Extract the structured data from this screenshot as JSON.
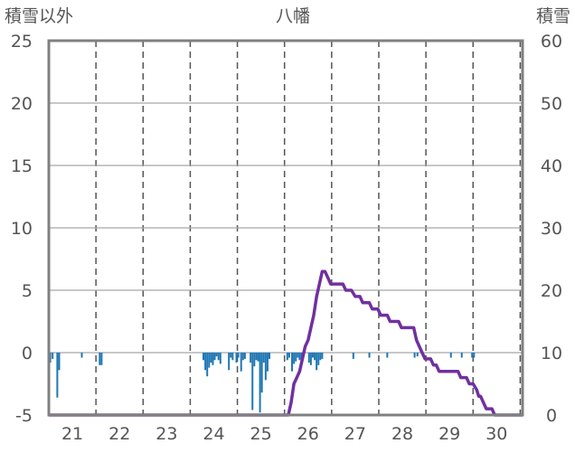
{
  "chart_data": {
    "type": "bar+line",
    "title": "八幡",
    "left_axis_label": "積雪以外",
    "right_axis_label": "積雪",
    "y_left": {
      "min": -5,
      "max": 25,
      "ticks": [
        25,
        20,
        15,
        10,
        5,
        0,
        -5
      ]
    },
    "y_right": {
      "min": 0,
      "max": 60,
      "ticks": [
        60,
        50,
        40,
        30,
        20,
        10,
        0
      ]
    },
    "x": {
      "start_day": 20.5,
      "end_day": 30.55,
      "tick_days": [
        21,
        22,
        23,
        24,
        25,
        26,
        27,
        28,
        29,
        30
      ]
    },
    "grid": {
      "vertical": "dashed",
      "horizontal": "solid"
    },
    "bar_color": "#1f77b4",
    "line_color": "#7030a0",
    "series": [
      {
        "type": "bar",
        "axis": "left",
        "points": [
          [
            20.53,
            -0.8
          ],
          [
            20.58,
            -0.5
          ],
          [
            20.68,
            -3.6
          ],
          [
            20.72,
            -1.4
          ],
          [
            21.2,
            -0.4
          ],
          [
            21.58,
            -1.0
          ],
          [
            21.62,
            -1.0
          ],
          [
            23.78,
            -0.6
          ],
          [
            23.82,
            -1.4
          ],
          [
            23.86,
            -1.9
          ],
          [
            23.9,
            -1.2
          ],
          [
            23.94,
            -0.8
          ],
          [
            23.98,
            -1.0
          ],
          [
            24.02,
            -0.6
          ],
          [
            24.06,
            -0.3
          ],
          [
            24.1,
            -0.6
          ],
          [
            24.14,
            -0.9
          ],
          [
            24.32,
            -1.4
          ],
          [
            24.36,
            -0.4
          ],
          [
            24.4,
            -0.6
          ],
          [
            24.48,
            -0.8
          ],
          [
            24.52,
            -0.4
          ],
          [
            24.58,
            -1.5
          ],
          [
            24.62,
            -0.6
          ],
          [
            24.66,
            -0.5
          ],
          [
            24.78,
            -0.8
          ],
          [
            24.82,
            -4.6
          ],
          [
            24.86,
            -1.1
          ],
          [
            24.9,
            -0.6
          ],
          [
            24.94,
            -0.7
          ],
          [
            24.98,
            -4.8
          ],
          [
            25.02,
            -3.2
          ],
          [
            25.06,
            -0.8
          ],
          [
            25.1,
            -2.2
          ],
          [
            25.14,
            -1.5
          ],
          [
            25.18,
            -0.5
          ],
          [
            25.56,
            -0.6
          ],
          [
            25.6,
            -0.4
          ],
          [
            25.66,
            -1.5
          ],
          [
            25.7,
            -0.9
          ],
          [
            25.74,
            -0.7
          ],
          [
            25.78,
            -0.4
          ],
          [
            25.82,
            -0.6
          ],
          [
            25.86,
            -0.6
          ],
          [
            25.9,
            -0.3
          ],
          [
            26.02,
            -0.8
          ],
          [
            26.06,
            -1.0
          ],
          [
            26.1,
            -0.4
          ],
          [
            26.14,
            -0.6
          ],
          [
            26.18,
            -1.4
          ],
          [
            26.22,
            -1.0
          ],
          [
            26.26,
            -0.6
          ],
          [
            26.3,
            -0.5
          ],
          [
            26.96,
            -0.5
          ],
          [
            27.3,
            -0.4
          ],
          [
            27.68,
            -0.4
          ],
          [
            28.26,
            -0.4
          ],
          [
            28.32,
            -0.3
          ],
          [
            29.03,
            -0.4
          ],
          [
            29.26,
            -0.4
          ],
          [
            29.48,
            -0.4
          ],
          [
            29.52,
            -0.4
          ]
        ]
      },
      {
        "type": "line",
        "axis": "right",
        "points": [
          [
            20.5,
            0
          ],
          [
            25.58,
            0
          ],
          [
            25.64,
            2
          ],
          [
            25.7,
            5
          ],
          [
            25.76,
            6
          ],
          [
            25.82,
            7
          ],
          [
            25.88,
            9
          ],
          [
            25.94,
            11
          ],
          [
            26.0,
            12
          ],
          [
            26.06,
            14
          ],
          [
            26.12,
            16
          ],
          [
            26.18,
            19
          ],
          [
            26.24,
            21
          ],
          [
            26.3,
            23
          ],
          [
            26.36,
            23
          ],
          [
            26.42,
            22
          ],
          [
            26.48,
            21
          ],
          [
            26.54,
            21
          ],
          [
            26.74,
            21
          ],
          [
            26.8,
            20
          ],
          [
            26.92,
            20
          ],
          [
            27.0,
            19
          ],
          [
            27.1,
            19
          ],
          [
            27.16,
            18
          ],
          [
            27.3,
            18
          ],
          [
            27.36,
            17
          ],
          [
            27.48,
            17
          ],
          [
            27.54,
            16
          ],
          [
            27.68,
            16
          ],
          [
            27.74,
            15
          ],
          [
            27.92,
            15
          ],
          [
            27.98,
            14
          ],
          [
            28.24,
            14
          ],
          [
            28.3,
            12
          ],
          [
            28.36,
            11
          ],
          [
            28.42,
            10
          ],
          [
            28.48,
            9
          ],
          [
            28.6,
            9
          ],
          [
            28.66,
            8
          ],
          [
            28.72,
            8
          ],
          [
            28.78,
            7
          ],
          [
            29.18,
            7
          ],
          [
            29.24,
            6
          ],
          [
            29.36,
            6
          ],
          [
            29.42,
            5
          ],
          [
            29.5,
            5
          ],
          [
            29.58,
            4
          ],
          [
            29.62,
            3
          ],
          [
            29.66,
            3
          ],
          [
            29.72,
            2
          ],
          [
            29.78,
            1
          ],
          [
            29.9,
            1
          ],
          [
            29.96,
            0
          ],
          [
            30.55,
            0
          ]
        ]
      }
    ]
  }
}
